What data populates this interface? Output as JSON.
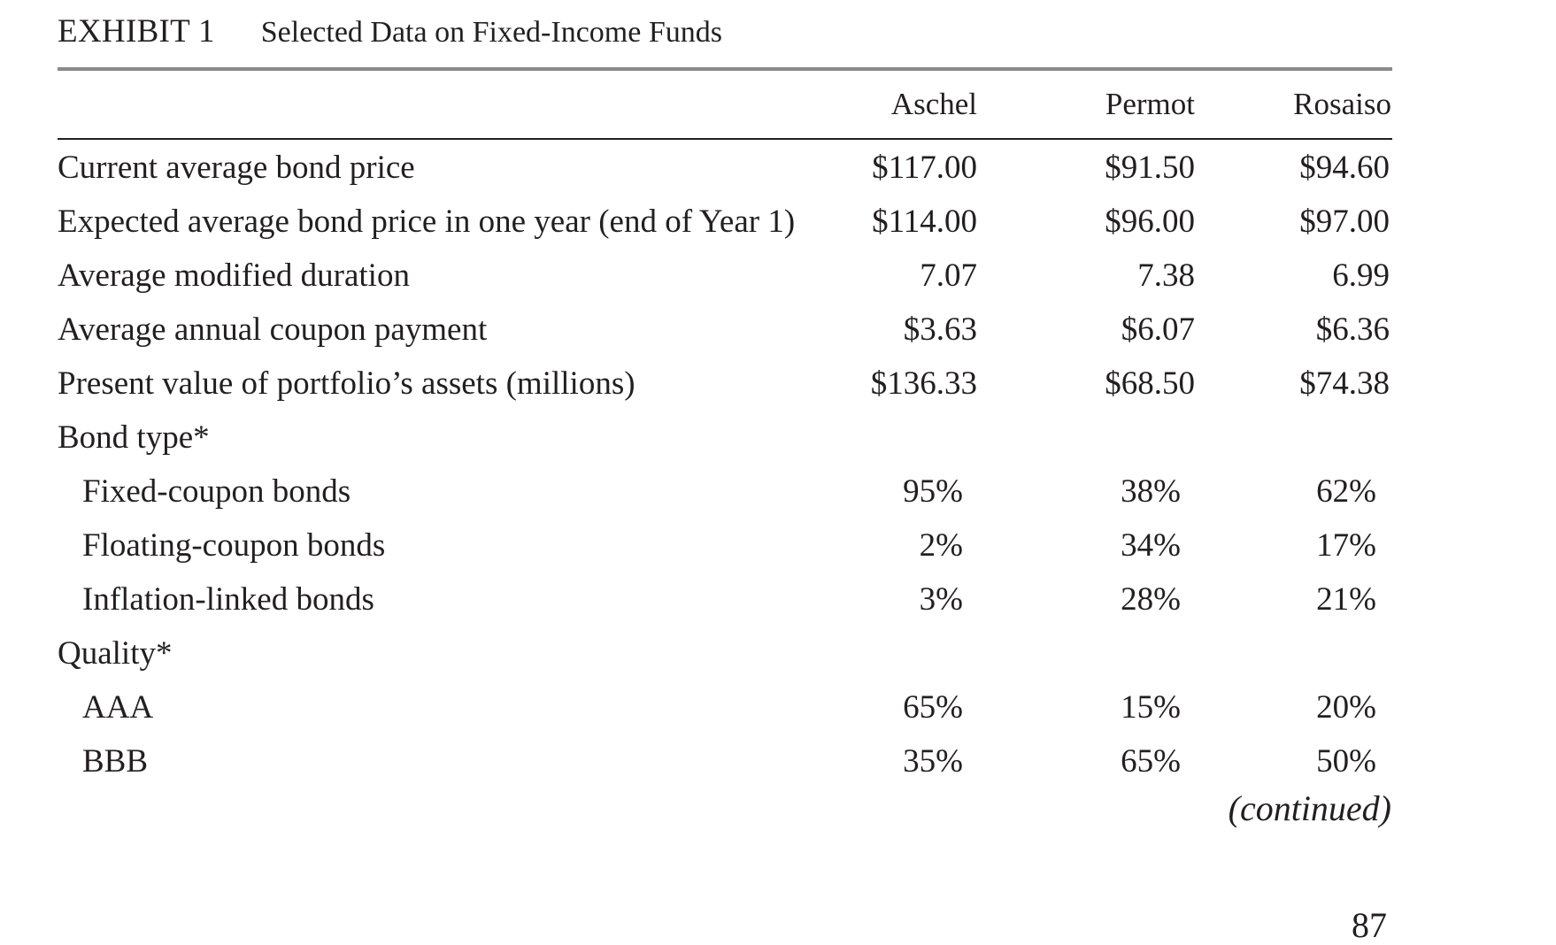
{
  "exhibit": {
    "label": "EXHIBIT 1",
    "title": "Selected Data on Fixed-Income Funds"
  },
  "columns": [
    "Aschel",
    "Permot",
    "Rosaiso"
  ],
  "rows": [
    {
      "label": "Current average bond price",
      "values": [
        "$117.00",
        "$91.50",
        "$94.60"
      ]
    },
    {
      "label": "Expected average bond price in one year (end of Year 1)",
      "values": [
        "$114.00",
        "$96.00",
        "$97.00"
      ]
    },
    {
      "label": "Average modified duration",
      "values": [
        "7.07",
        "7.38",
        "6.99"
      ]
    },
    {
      "label": "Average annual coupon payment",
      "values": [
        "$3.63",
        "$6.07",
        "$6.36"
      ]
    },
    {
      "label": "Present value of portfolio’s assets (millions)",
      "values": [
        "$136.33",
        "$68.50",
        "$74.38"
      ]
    },
    {
      "label": "Bond type*",
      "values": [
        "",
        "",
        ""
      ]
    },
    {
      "label": "Fixed-coupon bonds",
      "values": [
        "95%",
        "38%",
        "62%"
      ]
    },
    {
      "label": "Floating-coupon bonds",
      "values": [
        "2%",
        "34%",
        "17%"
      ]
    },
    {
      "label": "Inflation-linked bonds",
      "values": [
        "3%",
        "28%",
        "21%"
      ]
    },
    {
      "label": "Quality*",
      "values": [
        "",
        "",
        ""
      ]
    },
    {
      "label": "AAA",
      "values": [
        "65%",
        "15%",
        "20%"
      ]
    },
    {
      "label": "BBB",
      "values": [
        "35%",
        "65%",
        "50%"
      ]
    }
  ],
  "continued_label": "(continued)",
  "page_number": "87"
}
